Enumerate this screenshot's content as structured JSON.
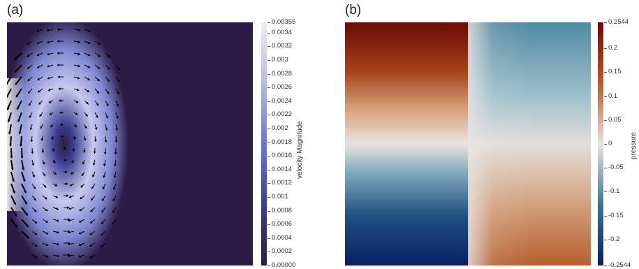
{
  "panel_a": {
    "label": "(a)",
    "colorbar_title": "velocity Magnitude",
    "colorbar_ticks": [
      "0.00355",
      "0.0034",
      "0.0032",
      "0.003",
      "0.0028",
      "0.0026",
      "0.0024",
      "0.0022",
      "0.002",
      "0.0018",
      "0.0016",
      "0.0014",
      "0.0012",
      "0.001",
      "0.0008",
      "0.0006",
      "0.0004",
      "0.0002",
      "0.00000"
    ],
    "colorbar_values": [
      0.00355,
      0.0034,
      0.0032,
      0.003,
      0.0028,
      0.0026,
      0.0024,
      0.0022,
      0.002,
      0.0018,
      0.0016,
      0.0014,
      0.0012,
      0.001,
      0.0008,
      0.0006,
      0.0004,
      0.0002,
      0.0
    ],
    "range": [
      0.0,
      0.00355
    ]
  },
  "panel_b": {
    "label": "(b)",
    "colorbar_title": "pressure",
    "colorbar_ticks": [
      "0.2544",
      "0.2",
      "0.15",
      "0.1",
      "0.05",
      "0",
      "-0.05",
      "-0.1",
      "-0.15",
      "-0.2",
      "-0.2544"
    ],
    "colorbar_values": [
      0.2544,
      0.2,
      0.15,
      0.1,
      0.05,
      0,
      -0.05,
      -0.1,
      -0.15,
      -0.2,
      -0.2544
    ],
    "range": [
      -0.2544,
      0.2544
    ]
  },
  "colors": {
    "velocity_low": "#2b1b47",
    "velocity_mid": "#5d72c6",
    "velocity_high": "#efefef",
    "pressure_high": "#6b0a05",
    "pressure_mid": "#e8e4e1",
    "pressure_low": "#0a1f63"
  }
}
